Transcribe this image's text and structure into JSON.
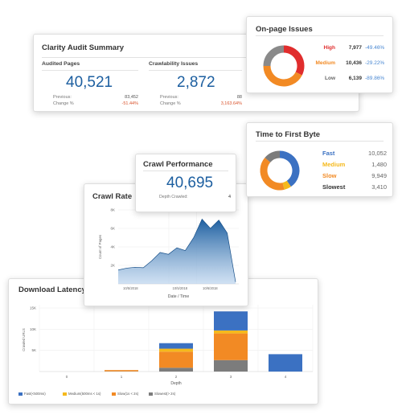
{
  "audit": {
    "title": "Clarity Audit Summary",
    "audited": {
      "label": "Audited Pages",
      "value": "40,521",
      "previous_label": "Previous:",
      "previous": "83,452",
      "change_label": "Change %",
      "change": "-51.44%"
    },
    "crawlability": {
      "label": "Crawlability Issues",
      "value": "2,872",
      "previous_label": "Previous:",
      "previous": "88",
      "change_label": "Change %",
      "change": "3,163.64%"
    }
  },
  "onpage": {
    "title": "On-page Issues",
    "rows": [
      {
        "name": "High",
        "count": "7,977",
        "pct": "-49.46%",
        "color": "#e02d2d"
      },
      {
        "name": "Medium",
        "count": "10,436",
        "pct": "-29.22%",
        "color": "#f28a24"
      },
      {
        "name": "Low",
        "count": "6,139",
        "pct": "-89.86%",
        "color": "#8a8a8a"
      }
    ],
    "chart_data": {
      "type": "pie",
      "categories": [
        "High",
        "Medium",
        "Low"
      ],
      "values": [
        7977,
        10436,
        6139
      ],
      "colors": [
        "#e02d2d",
        "#f28a24",
        "#8a8a8a"
      ]
    }
  },
  "ttfb": {
    "title": "Time to First Byte",
    "rows": [
      {
        "name": "Fast",
        "count": "10,052",
        "color": "#3b71c2"
      },
      {
        "name": "Medium",
        "count": "1,480",
        "color": "#f5b91c"
      },
      {
        "name": "Slow",
        "count": "9,949",
        "color": "#f28a24"
      },
      {
        "name": "Slowest",
        "count": "3,410",
        "color": "#333333"
      }
    ],
    "chart_data": {
      "type": "pie",
      "categories": [
        "Fast",
        "Medium",
        "Slow",
        "Slowest"
      ],
      "values": [
        10052,
        1480,
        9949,
        3410
      ],
      "colors": [
        "#3b71c2",
        "#f5b91c",
        "#f28a24",
        "#7c7c7c"
      ]
    }
  },
  "perf": {
    "title": "Crawl Performance",
    "value": "40,695",
    "depth_label": "Depth Crawled:",
    "depth": "4"
  },
  "rate": {
    "title": "Crawl Rate",
    "chart_data": {
      "type": "area",
      "ylabel": "Count of Pages",
      "xlabel": "Date / Time",
      "ylim": [
        0,
        8000
      ],
      "yticks": [
        "2K",
        "4K",
        "6K",
        "8K"
      ],
      "xticks": [
        "10/5/2018",
        "10/5/2018",
        "10/6/2018"
      ],
      "values": [
        1500,
        1700,
        1800,
        1750,
        2500,
        3400,
        3200,
        3900,
        3600,
        5000,
        7000,
        6000,
        6900,
        5500,
        200
      ],
      "color": "#1d5fa0"
    }
  },
  "latency": {
    "title": "Download Latency",
    "chart_data": {
      "type": "bar",
      "stacked": true,
      "ylabel": "Crawled URLS",
      "xlabel": "Depth",
      "ylim": [
        0,
        15000
      ],
      "yticks": [
        "5K",
        "10K",
        "15K"
      ],
      "categories": [
        "0",
        "1",
        "2",
        "3",
        "4"
      ],
      "series": [
        {
          "name": "Fast(<500ms)",
          "color": "#3b71c2",
          "values": [
            0,
            0,
            1300,
            4500,
            4100
          ]
        },
        {
          "name": "Medium(500ms < 1s)",
          "color": "#f5b91c",
          "values": [
            0,
            0,
            700,
            700,
            0
          ]
        },
        {
          "name": "Slow(1s < 2s)",
          "color": "#f28a24",
          "values": [
            0,
            300,
            3800,
            6300,
            0
          ]
        },
        {
          "name": "Slowest(> 2s)",
          "color": "#7c7c7c",
          "values": [
            0,
            50,
            900,
            2700,
            0
          ]
        }
      ]
    }
  }
}
